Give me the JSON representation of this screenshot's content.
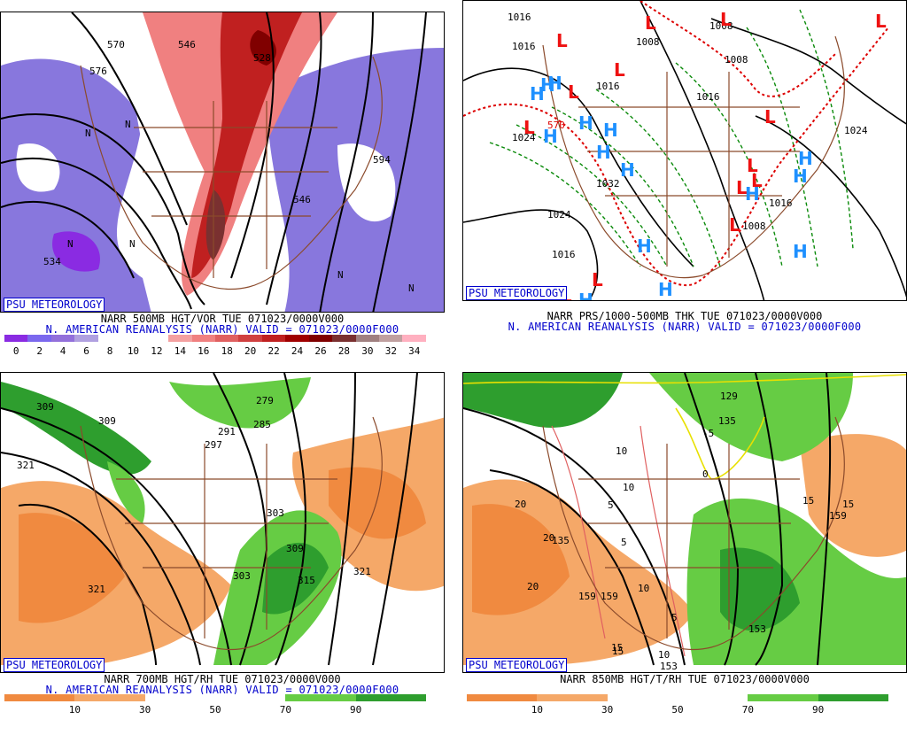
{
  "credit": "PSU METEOROLOGY",
  "panels": [
    {
      "title": "NARR 500MB HGT/VOR TUE 071023/0000V000",
      "subtitle": "N. AMERICAN REANALYSIS (NARR) VALID = 071023/0000F000",
      "legend_ticks": [
        "0",
        "2",
        "4",
        "6",
        "8",
        "10",
        "12",
        "14",
        "16",
        "18",
        "20",
        "22",
        "24",
        "26",
        "28",
        "30",
        "32",
        "34"
      ],
      "legend_colors": [
        "#8a2be2",
        "#7b68ee",
        "#9370db",
        "#b0a0e0",
        "#ffffff",
        "#ffffff",
        "#ffffff",
        "#f4a0a0",
        "#f08080",
        "#e06060",
        "#d04040",
        "#c02020",
        "#a00000",
        "#800000",
        "#7a3030",
        "#a08080",
        "#c0a0a0",
        "#ffb0c0"
      ],
      "labels": [
        "570",
        "576",
        "546",
        "528",
        "594",
        "546",
        "534",
        "N",
        "N",
        "N",
        "N",
        "N",
        "N"
      ]
    },
    {
      "title": "NARR PRS/1000-500MB THK TUE 071023/0000V000",
      "subtitle": "N. AMERICAN REANALYSIS (NARR) VALID = 071023/0000F000",
      "labels": [
        "1016",
        "1016",
        "1008",
        "1008",
        "1008",
        "1016",
        "1024",
        "1024",
        "1032",
        "1024",
        "1016",
        "1016",
        "1016",
        "1008",
        "570"
      ],
      "low_centers": [
        "L",
        "L",
        "L",
        "L",
        "L",
        "L",
        "L",
        "L",
        "L",
        "L",
        "L",
        "L",
        "L",
        "L"
      ],
      "high_centers": [
        "H",
        "H",
        "H",
        "H",
        "H",
        "H",
        "H",
        "H",
        "H",
        "H",
        "H",
        "H",
        "H",
        "H",
        "H"
      ]
    },
    {
      "title": "NARR 700MB HGT/RH TUE 071023/0000V000",
      "subtitle": "N. AMERICAN REANALYSIS (NARR) VALID = 071023/0000F000",
      "legend_ticks": [
        "10",
        "30",
        "50",
        "70",
        "90"
      ],
      "legend_colors": [
        "#f08a40",
        "#f5a868",
        "#ffffff",
        "#ffffff",
        "#66cc44",
        "#2e9e2e"
      ],
      "labels": [
        "309",
        "309",
        "321",
        "279",
        "285",
        "291",
        "297",
        "303",
        "309",
        "315",
        "303",
        "321",
        "321"
      ]
    },
    {
      "title": "NARR 850MB HGT/T/RH TUE 071023/0000V000",
      "legend_ticks": [
        "10",
        "30",
        "50",
        "70",
        "90"
      ],
      "legend_colors": [
        "#f08a40",
        "#f5a868",
        "#ffffff",
        "#ffffff",
        "#66cc44",
        "#2e9e2e"
      ],
      "labels": [
        "129",
        "135",
        "-5",
        "0",
        "10",
        "10",
        "5",
        "5",
        "20",
        "20",
        "20",
        "15",
        "15",
        "159",
        "159",
        "5",
        "10",
        "10",
        "15",
        "153",
        "153",
        "135",
        "159",
        "15"
      ]
    }
  ]
}
